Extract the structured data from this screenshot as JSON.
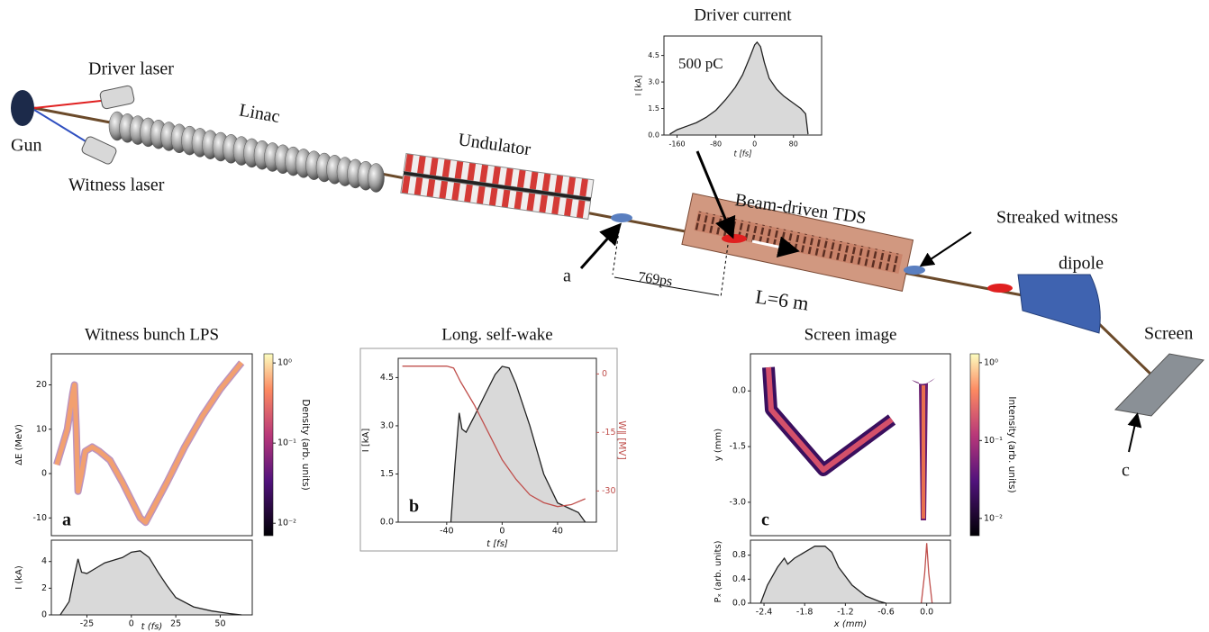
{
  "schematic": {
    "labels": {
      "driver_laser": "Driver laser",
      "gun": "Gun",
      "witness_laser": "Witness laser",
      "linac": "Linac",
      "undulator": "Undulator",
      "tds": "Beam-driven TDS",
      "streaked": "Streaked witness",
      "dipole": "dipole",
      "screen": "Screen",
      "a": "a",
      "delay": "769ps",
      "length": "L=6 m",
      "c": "c"
    }
  },
  "chart_data": [
    {
      "type": "line",
      "title": "Driver current",
      "annotation": "500 pC",
      "xlabel": "t [fs]",
      "ylabel": "I [kA]",
      "xlim": [
        -187,
        138
      ],
      "ylim": [
        0,
        5.6
      ],
      "xticks": [
        -160,
        -80,
        0,
        80
      ],
      "yticks": [
        {
          "value": 0,
          "label": "0.0"
        },
        1.5,
        {
          "value": 3,
          "label": "3.0"
        },
        4.5
      ],
      "series": [
        {
          "color": "#222222",
          "fill": "#d9d9d9",
          "x": [
            -175,
            -160,
            -140,
            -120,
            -100,
            -80,
            -60,
            -40,
            -25,
            -10,
            0,
            5,
            12,
            20,
            30,
            45,
            60,
            80,
            95,
            105,
            110
          ],
          "values": [
            0.05,
            0.3,
            0.5,
            0.7,
            1.0,
            1.4,
            2.0,
            2.7,
            3.4,
            4.4,
            5.1,
            5.25,
            5.0,
            4.1,
            3.2,
            2.6,
            2.2,
            1.8,
            1.5,
            1.2,
            0.05
          ]
        }
      ]
    },
    {
      "type": "band",
      "title": "Witness bunch LPS",
      "ylabel": "ΔE (MeV)",
      "panel_label": "a",
      "xlim": [
        -45,
        68
      ],
      "ylim": [
        -14,
        27
      ],
      "yticks": [
        -10,
        0,
        10,
        20
      ],
      "clabel": "Density (arb. units)",
      "clim": [
        0.007,
        1.3
      ],
      "clog": true,
      "cticks": [
        {
          "value": 1,
          "label": "10⁰"
        },
        {
          "value": 0.1,
          "label": "10⁻¹"
        },
        {
          "value": 0.01,
          "label": "10⁻²"
        }
      ],
      "series": [
        {
          "color": "#f2a070",
          "x": [
            -42,
            -36,
            -33,
            -32,
            -31,
            -30,
            -28,
            -26,
            -22,
            -18,
            -12,
            -5,
            0,
            5,
            8,
            12,
            20,
            30,
            40,
            50,
            62
          ],
          "values": [
            2,
            10,
            18,
            20,
            10,
            -4,
            0,
            5,
            6,
            5,
            3,
            -2,
            -6,
            -10,
            -11,
            -8,
            -2,
            6,
            13,
            19,
            25
          ]
        }
      ]
    },
    {
      "type": "line",
      "xlabel": "t (fs)",
      "ylabel": "I (kA)",
      "xlim": [
        -45,
        68
      ],
      "ylim": [
        0,
        5.6
      ],
      "xticks": [
        -25,
        0,
        25,
        50
      ],
      "yticks": [
        0,
        2,
        4
      ],
      "series": [
        {
          "color": "#222222",
          "fill": "#d9d9d9",
          "x": [
            -40,
            -35,
            -32,
            -30,
            -28,
            -25,
            -20,
            -15,
            -10,
            -5,
            0,
            5,
            10,
            15,
            20,
            25,
            35,
            45,
            55,
            62
          ],
          "values": [
            0,
            1,
            3,
            4.2,
            3.2,
            3.1,
            3.5,
            3.9,
            4.1,
            4.3,
            4.7,
            4.8,
            4.3,
            3.2,
            2.2,
            1.3,
            0.6,
            0.3,
            0.1,
            0
          ]
        }
      ]
    },
    {
      "type": "line",
      "title": "Long. self-wake",
      "xlabel": "t [fs]",
      "ylabel": "I [kA]",
      "y2label": "W∥ [MV]",
      "panel_label": "b",
      "xlim": [
        -75,
        68
      ],
      "ylim": [
        0,
        5.1
      ],
      "y2lim": [
        -38,
        4
      ],
      "xticks": [
        -40,
        0,
        40
      ],
      "yticks": [
        {
          "value": 0,
          "label": "0.0"
        },
        1.5,
        {
          "value": 3,
          "label": "3.0"
        },
        4.5
      ],
      "y2ticks": [
        0,
        -15,
        -30
      ],
      "series": [
        {
          "color": "#222222",
          "fill": "#d9d9d9",
          "x": [
            -37,
            -34,
            -31,
            -29,
            -26,
            -20,
            -12,
            -5,
            0,
            5,
            10,
            20,
            30,
            40,
            50,
            55,
            60
          ],
          "values": [
            0,
            1.8,
            3.4,
            2.9,
            2.8,
            3.3,
            4.0,
            4.6,
            4.85,
            4.8,
            4.3,
            3.0,
            1.5,
            0.6,
            0.4,
            0.3,
            0
          ]
        },
        {
          "color": "#c0504d",
          "axis": "y2",
          "x": [
            -72,
            -40,
            -35,
            -30,
            -20,
            -10,
            0,
            10,
            20,
            30,
            40,
            50,
            60
          ],
          "values": [
            2,
            2,
            1.5,
            -2,
            -8,
            -15,
            -22,
            -27,
            -31,
            -33,
            -34,
            -33.5,
            -32
          ]
        }
      ]
    },
    {
      "type": "image",
      "title": "Screen image",
      "ylabel": "y (mm)",
      "panel_label": "c",
      "xlim": [
        -2.6,
        0.35
      ],
      "ylim": [
        -3.9,
        1.0
      ],
      "yticks": [
        {
          "value": 0,
          "label": "0.0"
        },
        -1.5,
        {
          "value": -3,
          "label": "-3.0"
        }
      ],
      "clabel": "Intensity (arb. units)",
      "clim": [
        0.006,
        1.3
      ],
      "clog": true,
      "cticks": [
        {
          "value": 1,
          "label": "10⁰"
        },
        {
          "value": 0.1,
          "label": "10⁻¹"
        },
        {
          "value": 0.01,
          "label": "10⁻²"
        }
      ],
      "series": []
    },
    {
      "type": "line",
      "xlabel": "x (mm)",
      "ylabel": "Pₓ (arb. units)",
      "xlim": [
        -2.6,
        0.35
      ],
      "ylim": [
        0,
        1.05
      ],
      "xticks": [
        -2.4,
        -1.8,
        -1.2,
        -0.6,
        {
          "value": 0,
          "label": "0.0"
        }
      ],
      "yticks": [
        {
          "value": 0,
          "label": "0.0"
        },
        0.4,
        0.8
      ],
      "series": [
        {
          "color": "#222222",
          "fill": "#d9d9d9",
          "x": [
            -2.45,
            -2.35,
            -2.2,
            -2.1,
            -2.05,
            -1.95,
            -1.8,
            -1.65,
            -1.5,
            -1.4,
            -1.3,
            -1.1,
            -0.9,
            -0.7,
            -0.6
          ],
          "values": [
            0,
            0.3,
            0.6,
            0.75,
            0.65,
            0.75,
            0.85,
            0.95,
            0.95,
            0.85,
            0.6,
            0.3,
            0.12,
            0.03,
            0
          ]
        },
        {
          "color": "#c0504d",
          "x": [
            -0.08,
            -0.03,
            0,
            0.03,
            0.08
          ],
          "values": [
            0,
            0.5,
            1.0,
            0.5,
            0
          ]
        }
      ]
    }
  ]
}
